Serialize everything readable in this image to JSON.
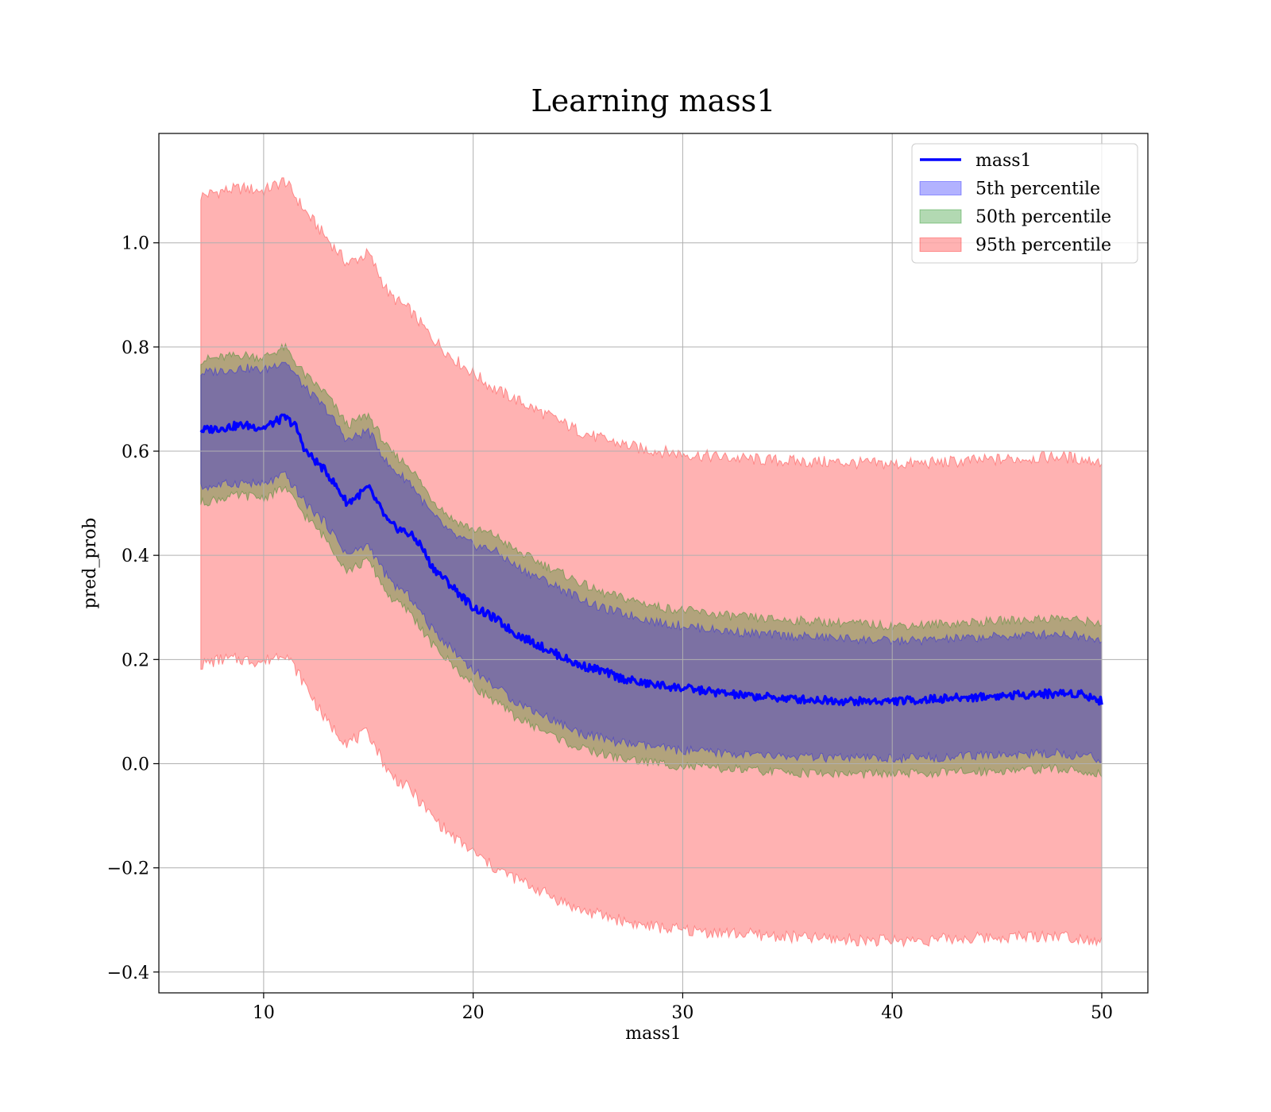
{
  "chart_data": {
    "type": "line",
    "title": "Learning mass1",
    "xlabel": "mass1",
    "ylabel": "pred_prob",
    "xlim": [
      5,
      52.2
    ],
    "ylim": [
      -0.44,
      1.21
    ],
    "x_ticks": [
      10,
      20,
      30,
      40,
      50
    ],
    "y_ticks": [
      -0.4,
      -0.2,
      0.0,
      0.2,
      0.4,
      0.6,
      0.8,
      1.0
    ],
    "x_tick_labels": [
      "10",
      "20",
      "30",
      "40",
      "50"
    ],
    "y_tick_labels": [
      "−0.4",
      "−0.2",
      "0.0",
      "0.2",
      "0.4",
      "0.6",
      "0.8",
      "1.0"
    ],
    "grid": true,
    "legend_position": "top-right",
    "series": [
      {
        "name": "mass1",
        "kind": "line",
        "color": "#0000ff",
        "x": [
          7,
          8,
          9,
          10,
          11,
          11.5,
          12,
          13,
          14,
          15,
          16,
          17,
          17.5,
          18,
          19,
          20,
          21,
          22,
          23,
          24,
          25,
          26,
          27,
          28,
          29,
          30,
          31,
          32,
          33,
          34,
          35,
          36,
          37,
          38,
          39,
          40,
          41,
          42,
          43,
          44,
          45,
          46,
          47,
          48,
          49,
          50
        ],
        "y": [
          0.64,
          0.645,
          0.65,
          0.645,
          0.665,
          0.65,
          0.6,
          0.56,
          0.5,
          0.53,
          0.46,
          0.44,
          0.42,
          0.38,
          0.34,
          0.3,
          0.28,
          0.25,
          0.23,
          0.21,
          0.19,
          0.18,
          0.165,
          0.155,
          0.15,
          0.145,
          0.14,
          0.135,
          0.13,
          0.128,
          0.125,
          0.123,
          0.122,
          0.12,
          0.12,
          0.12,
          0.122,
          0.124,
          0.126,
          0.128,
          0.13,
          0.132,
          0.134,
          0.135,
          0.135,
          0.12
        ]
      },
      {
        "name": "5th percentile",
        "kind": "band",
        "color": "#0000ff",
        "x": [
          7,
          8,
          9,
          10,
          11,
          12,
          13,
          14,
          15,
          16,
          17,
          18,
          19,
          20,
          21,
          22,
          23,
          24,
          25,
          26,
          27,
          28,
          29,
          30,
          32,
          34,
          36,
          38,
          40,
          42,
          44,
          46,
          48,
          50
        ],
        "lower": [
          0.53,
          0.535,
          0.54,
          0.535,
          0.555,
          0.5,
          0.46,
          0.4,
          0.42,
          0.35,
          0.32,
          0.26,
          0.22,
          0.18,
          0.15,
          0.12,
          0.1,
          0.08,
          0.06,
          0.05,
          0.04,
          0.035,
          0.03,
          0.025,
          0.02,
          0.015,
          0.012,
          0.01,
          0.01,
          0.012,
          0.015,
          0.018,
          0.02,
          0.01
        ],
        "upper": [
          0.75,
          0.755,
          0.76,
          0.755,
          0.775,
          0.72,
          0.68,
          0.62,
          0.64,
          0.57,
          0.54,
          0.48,
          0.44,
          0.42,
          0.41,
          0.38,
          0.36,
          0.34,
          0.32,
          0.3,
          0.29,
          0.28,
          0.27,
          0.265,
          0.255,
          0.248,
          0.244,
          0.24,
          0.235,
          0.238,
          0.242,
          0.246,
          0.25,
          0.24
        ]
      },
      {
        "name": "50th percentile",
        "kind": "band",
        "color": "#008000",
        "x": [
          7,
          8,
          9,
          10,
          11,
          12,
          13,
          14,
          15,
          16,
          17,
          18,
          19,
          20,
          21,
          22,
          23,
          24,
          25,
          26,
          27,
          28,
          29,
          30,
          32,
          34,
          36,
          38,
          40,
          42,
          44,
          46,
          48,
          50
        ],
        "lower": [
          0.5,
          0.51,
          0.515,
          0.51,
          0.53,
          0.475,
          0.43,
          0.37,
          0.39,
          0.32,
          0.29,
          0.23,
          0.19,
          0.15,
          0.12,
          0.09,
          0.07,
          0.05,
          0.03,
          0.02,
          0.01,
          0.005,
          0.0,
          -0.005,
          -0.01,
          -0.015,
          -0.018,
          -0.02,
          -0.02,
          -0.018,
          -0.015,
          -0.012,
          -0.01,
          -0.02
        ],
        "upper": [
          0.775,
          0.78,
          0.785,
          0.78,
          0.8,
          0.745,
          0.71,
          0.65,
          0.67,
          0.6,
          0.57,
          0.51,
          0.47,
          0.45,
          0.44,
          0.41,
          0.39,
          0.37,
          0.35,
          0.33,
          0.32,
          0.31,
          0.3,
          0.295,
          0.285,
          0.278,
          0.274,
          0.27,
          0.265,
          0.268,
          0.272,
          0.276,
          0.28,
          0.27
        ]
      },
      {
        "name": "95th percentile",
        "kind": "band",
        "color": "#ff0000",
        "x": [
          7,
          8,
          9,
          10,
          11,
          12,
          13,
          14,
          15,
          16,
          17,
          18,
          19,
          20,
          21,
          22,
          23,
          24,
          25,
          26,
          27,
          28,
          29,
          30,
          32,
          34,
          36,
          38,
          40,
          42,
          44,
          46,
          48,
          50
        ],
        "lower": [
          0.19,
          0.2,
          0.2,
          0.195,
          0.215,
          0.15,
          0.08,
          0.04,
          0.06,
          -0.02,
          -0.05,
          -0.1,
          -0.14,
          -0.17,
          -0.2,
          -0.22,
          -0.24,
          -0.26,
          -0.28,
          -0.29,
          -0.3,
          -0.31,
          -0.315,
          -0.32,
          -0.325,
          -0.33,
          -0.335,
          -0.338,
          -0.34,
          -0.338,
          -0.335,
          -0.332,
          -0.33,
          -0.34
        ],
        "upper": [
          1.09,
          1.1,
          1.105,
          1.1,
          1.12,
          1.06,
          1.01,
          0.96,
          0.98,
          0.9,
          0.87,
          0.82,
          0.78,
          0.75,
          0.72,
          0.7,
          0.68,
          0.66,
          0.64,
          0.625,
          0.615,
          0.605,
          0.6,
          0.595,
          0.588,
          0.583,
          0.58,
          0.578,
          0.575,
          0.578,
          0.582,
          0.586,
          0.59,
          0.58
        ]
      }
    ]
  }
}
